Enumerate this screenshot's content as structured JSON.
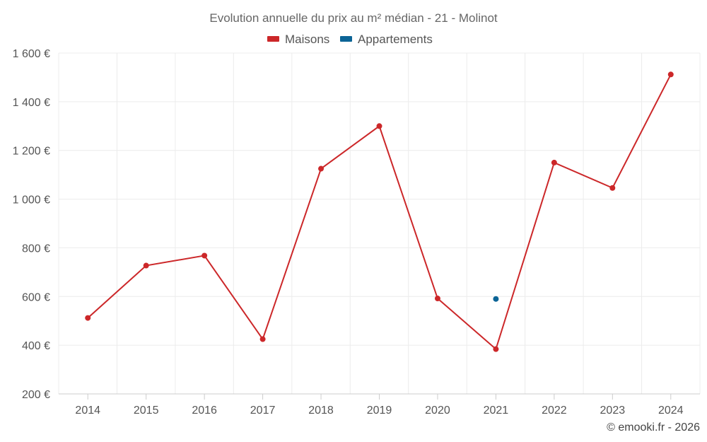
{
  "chart_data": {
    "type": "line",
    "title": "Evolution annuelle du prix au m² médian - 21 - Molinot",
    "categories": [
      "2014",
      "2015",
      "2016",
      "2017",
      "2018",
      "2019",
      "2020",
      "2021",
      "2022",
      "2023",
      "2024"
    ],
    "series": [
      {
        "name": "Maisons",
        "color": "#cc2729",
        "values": [
          512,
          727,
          768,
          425,
          1125,
          1300,
          592,
          384,
          1150,
          1046,
          1512
        ]
      },
      {
        "name": "Appartements",
        "color": "#0c6496",
        "values": [
          null,
          null,
          null,
          null,
          null,
          null,
          null,
          590,
          null,
          null,
          null
        ]
      }
    ],
    "ylim": [
      200,
      1600
    ],
    "yticks": [
      200,
      400,
      600,
      800,
      1000,
      1200,
      1400,
      1600
    ],
    "ytick_labels": [
      "200 €",
      "400 €",
      "600 €",
      "800 €",
      "1 000 €",
      "1 200 €",
      "1 400 €",
      "1 600 €"
    ],
    "xlabel": "",
    "ylabel": "",
    "grid": true,
    "legend_position": "top-center"
  },
  "credit": "© emooki.fr - 2026"
}
